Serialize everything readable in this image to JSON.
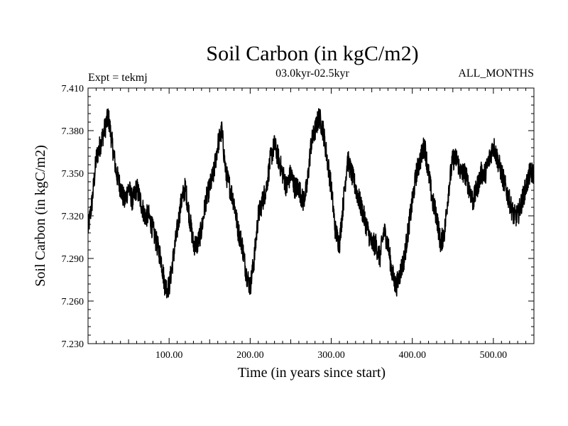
{
  "chart_data": {
    "type": "line",
    "title": "Soil Carbon (in kgC/m2)",
    "subtitle_left": "Expt = tekmj",
    "subtitle_center": "03.0kyr-02.5kyr",
    "subtitle_right": "ALL_MONTHS",
    "xlabel": "Time (in years since start)",
    "ylabel": "Soil Carbon (in kgC/m2)",
    "xlim": [
      0,
      550
    ],
    "ylim": [
      7.23,
      7.41
    ],
    "x_ticks": [
      {
        "value": 100,
        "label": "100.00"
      },
      {
        "value": 200,
        "label": "200.00"
      },
      {
        "value": 300,
        "label": "300.00"
      },
      {
        "value": 400,
        "label": "400.00"
      },
      {
        "value": 500,
        "label": "500.00"
      }
    ],
    "y_ticks": [
      {
        "value": 7.23,
        "label": "7.230"
      },
      {
        "value": 7.26,
        "label": "7.260"
      },
      {
        "value": 7.29,
        "label": "7.290"
      },
      {
        "value": 7.32,
        "label": "7.320"
      },
      {
        "value": 7.35,
        "label": "7.350"
      },
      {
        "value": 7.38,
        "label": "7.380"
      },
      {
        "value": 7.41,
        "label": "7.410"
      }
    ],
    "grid": false,
    "line_color": "#000000",
    "series": [
      {
        "x": [
          0,
          5,
          10,
          15,
          20,
          25,
          30,
          35,
          40,
          45,
          50,
          55,
          60,
          65,
          70,
          75,
          80,
          85,
          90,
          95,
          100,
          105,
          110,
          115,
          120,
          125,
          130,
          135,
          140,
          145,
          150,
          155,
          160,
          165,
          170,
          175,
          180,
          185,
          190,
          195,
          200,
          205,
          210,
          215,
          220,
          225,
          230,
          235,
          240,
          245,
          250,
          255,
          260,
          265,
          270,
          275,
          280,
          285,
          290,
          295,
          300,
          305,
          310,
          315,
          320,
          325,
          330,
          335,
          340,
          345,
          350,
          355,
          360,
          365,
          370,
          375,
          380,
          385,
          390,
          395,
          400,
          405,
          410,
          415,
          420,
          425,
          430,
          435,
          440,
          445,
          450,
          455,
          460,
          465,
          470,
          475,
          480,
          485,
          490,
          495,
          500,
          505,
          510,
          515,
          520,
          525,
          530,
          535,
          540,
          545,
          550
        ],
        "y": [
          7.31,
          7.33,
          7.36,
          7.37,
          7.38,
          7.39,
          7.37,
          7.35,
          7.34,
          7.33,
          7.34,
          7.33,
          7.34,
          7.33,
          7.32,
          7.32,
          7.31,
          7.3,
          7.29,
          7.27,
          7.27,
          7.29,
          7.31,
          7.33,
          7.34,
          7.32,
          7.3,
          7.3,
          7.31,
          7.33,
          7.34,
          7.35,
          7.37,
          7.38,
          7.35,
          7.34,
          7.33,
          7.31,
          7.3,
          7.28,
          7.27,
          7.29,
          7.32,
          7.33,
          7.34,
          7.36,
          7.37,
          7.36,
          7.35,
          7.34,
          7.35,
          7.34,
          7.34,
          7.33,
          7.34,
          7.37,
          7.38,
          7.39,
          7.38,
          7.36,
          7.34,
          7.31,
          7.3,
          7.33,
          7.36,
          7.35,
          7.34,
          7.33,
          7.32,
          7.31,
          7.3,
          7.3,
          7.29,
          7.31,
          7.3,
          7.28,
          7.27,
          7.28,
          7.29,
          7.31,
          7.33,
          7.35,
          7.36,
          7.37,
          7.35,
          7.33,
          7.32,
          7.3,
          7.31,
          7.34,
          7.36,
          7.36,
          7.35,
          7.35,
          7.34,
          7.33,
          7.34,
          7.35,
          7.35,
          7.36,
          7.37,
          7.36,
          7.35,
          7.34,
          7.33,
          7.32,
          7.32,
          7.33,
          7.34,
          7.35,
          7.35
        ],
        "noise_amplitude": 0.008
      }
    ]
  }
}
